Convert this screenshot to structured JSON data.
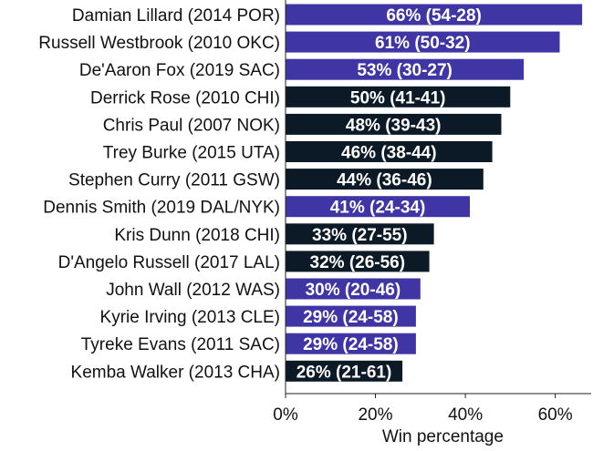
{
  "chart_data": {
    "type": "bar",
    "orientation": "horizontal",
    "title": "",
    "xlabel": "Win percentage",
    "ylabel": "",
    "xlim": [
      0,
      68
    ],
    "x_ticks": [
      0,
      20,
      40,
      60
    ],
    "x_tick_labels": [
      "0%",
      "20%",
      "40%",
      "60%"
    ],
    "grid": false,
    "colors": {
      "purple": "#3f35a5",
      "dark": "#0b1a26"
    },
    "categories": [
      "Damian Lillard (2014 POR)",
      "Russell Westbrook (2010 OKC)",
      "De'Aaron Fox (2019 SAC)",
      "Derrick Rose (2010 CHI)",
      "Chris Paul (2007 NOK)",
      "Trey Burke (2015 UTA)",
      "Stephen Curry (2011 GSW)",
      "Dennis Smith (2019 DAL/NYK)",
      "Kris Dunn (2018 CHI)",
      "D'Angelo Russell (2017 LAL)",
      "John Wall (2012 WAS)",
      "Kyrie Irving (2013 CLE)",
      "Tyreke Evans (2011 SAC)",
      "Kemba Walker (2013 CHA)"
    ],
    "values": [
      66,
      61,
      53,
      50,
      48,
      46,
      44,
      41,
      33,
      32,
      30,
      29,
      29,
      26
    ],
    "labels": [
      "66% (54-28)",
      "61% (50-32)",
      "53% (30-27)",
      "50% (41-41)",
      "48% (39-43)",
      "46% (38-44)",
      "44% (36-46)",
      "41% (24-34)",
      "33% (27-55)",
      "32% (26-56)",
      "30% (20-46)",
      "29% (24-58)",
      "29% (24-58)",
      "26% (21-61)"
    ],
    "bar_colors": [
      "purple",
      "purple",
      "purple",
      "dark",
      "dark",
      "dark",
      "dark",
      "purple",
      "dark",
      "dark",
      "purple",
      "purple",
      "purple",
      "dark"
    ]
  }
}
